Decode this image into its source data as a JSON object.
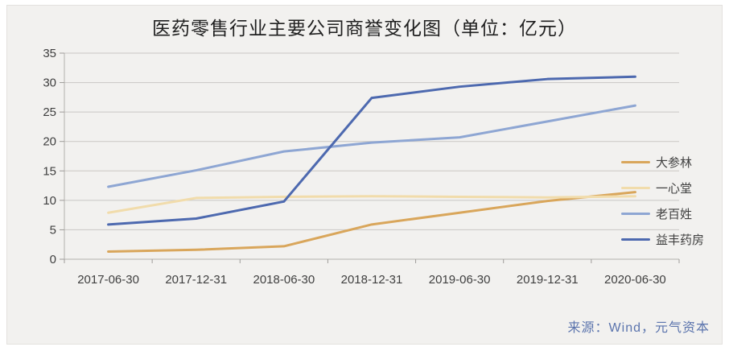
{
  "title": "医药零售行业主要公司商誉变化图（单位：亿元）",
  "source_note": "来源：Wind，元气资本",
  "chart_data": {
    "type": "line",
    "title": "医药零售行业主要公司商誉变化图（单位：亿元）",
    "unit": "亿元",
    "categories": [
      "2017-06-30",
      "2017-12-31",
      "2018-06-30",
      "2018-12-31",
      "2019-06-30",
      "2019-12-31",
      "2020-06-30"
    ],
    "series": [
      {
        "name": "大参林",
        "color": "#d9a65b",
        "values": [
          1.3,
          1.6,
          2.2,
          5.9,
          7.9,
          9.9,
          11.4
        ]
      },
      {
        "name": "一心堂",
        "color": "#f1dcab",
        "values": [
          7.9,
          10.4,
          10.6,
          10.7,
          10.6,
          10.5,
          10.7
        ]
      },
      {
        "name": "老百姓",
        "color": "#8ea6d3",
        "values": [
          12.3,
          15.1,
          18.3,
          19.8,
          20.7,
          23.4,
          26.1
        ]
      },
      {
        "name": "益丰药房",
        "color": "#4d69af",
        "values": [
          5.9,
          6.9,
          9.8,
          27.4,
          29.3,
          30.6,
          31.0
        ]
      }
    ],
    "ylim": [
      0,
      35
    ],
    "ytick_step": 5,
    "ytick_labels": [
      "0",
      "5",
      "10",
      "15",
      "20",
      "25",
      "30",
      "35"
    ],
    "grid": true,
    "legend_position": "right"
  },
  "colors": {
    "panel_bg": "#f2f1ef",
    "grid": "#c9c7c4",
    "axis": "#b3b1ae",
    "axis_text": "#3f3f3f",
    "title_text": "#1f1f1f",
    "source_text": "#5b74ad"
  }
}
